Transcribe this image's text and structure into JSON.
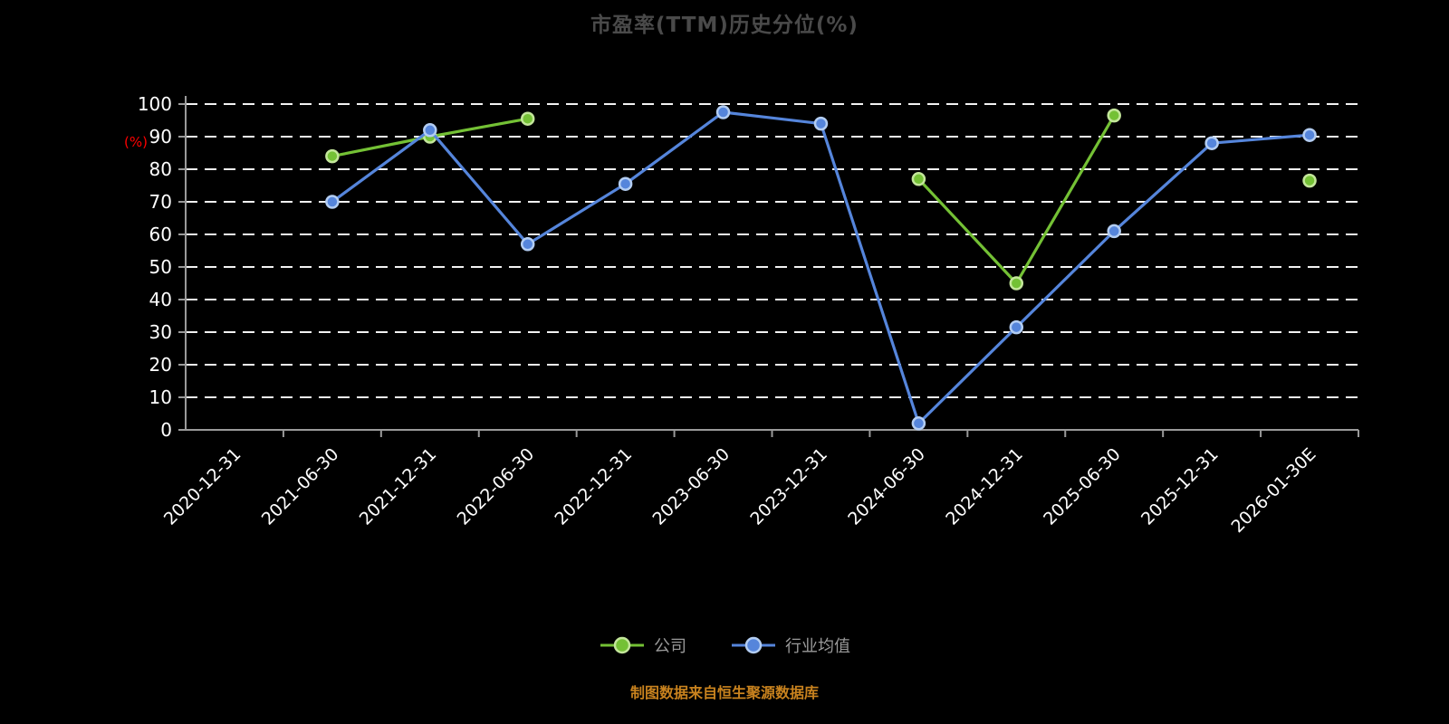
{
  "page": {
    "title": "市盈率(TTM)历史分位(%)",
    "footer": "制图数据来自恒生聚源数据库",
    "background_color": "#000000",
    "title_color": "#4a4a4a",
    "footer_color": "#c8821e"
  },
  "axis": {
    "y_label": "(%)",
    "y_label_color": "#ff0000",
    "axis_color": "#9a9a9a",
    "tick_label_color": "#ffffff",
    "gridline_color": "#ffffff"
  },
  "legend": {
    "items": [
      {
        "label": "公司",
        "color": "#74c135"
      },
      {
        "label": "行业均值",
        "color": "#5585db"
      }
    ],
    "text_color": "#9a9a9a"
  },
  "chart_data": {
    "type": "line",
    "title": "市盈率(TTM)历史分位(%)",
    "xlabel": "",
    "ylabel": "(%)",
    "ylim": [
      0,
      100
    ],
    "yticks": [
      0,
      10,
      20,
      30,
      40,
      50,
      60,
      70,
      80,
      90,
      100
    ],
    "grid": true,
    "legend_position": "bottom",
    "categories": [
      "2020-12-31",
      "2021-06-30",
      "2021-12-31",
      "2022-06-30",
      "2022-12-31",
      "2023-06-30",
      "2023-12-31",
      "2024-06-30",
      "2024-12-31",
      "2025-06-30",
      "2025-12-31",
      "2026-01-30E"
    ],
    "series": [
      {
        "name": "公司",
        "color": "#74c135",
        "marker_edge": "#c3e69a",
        "values": [
          null,
          84,
          90,
          95.5,
          null,
          null,
          null,
          77,
          45,
          96.5,
          null,
          76.5
        ]
      },
      {
        "name": "行业均值",
        "color": "#5585db",
        "marker_edge": "#b3cdf2",
        "values": [
          null,
          70,
          92,
          57,
          75.5,
          97.5,
          94,
          2,
          31.5,
          61,
          88,
          90.5
        ]
      }
    ]
  }
}
